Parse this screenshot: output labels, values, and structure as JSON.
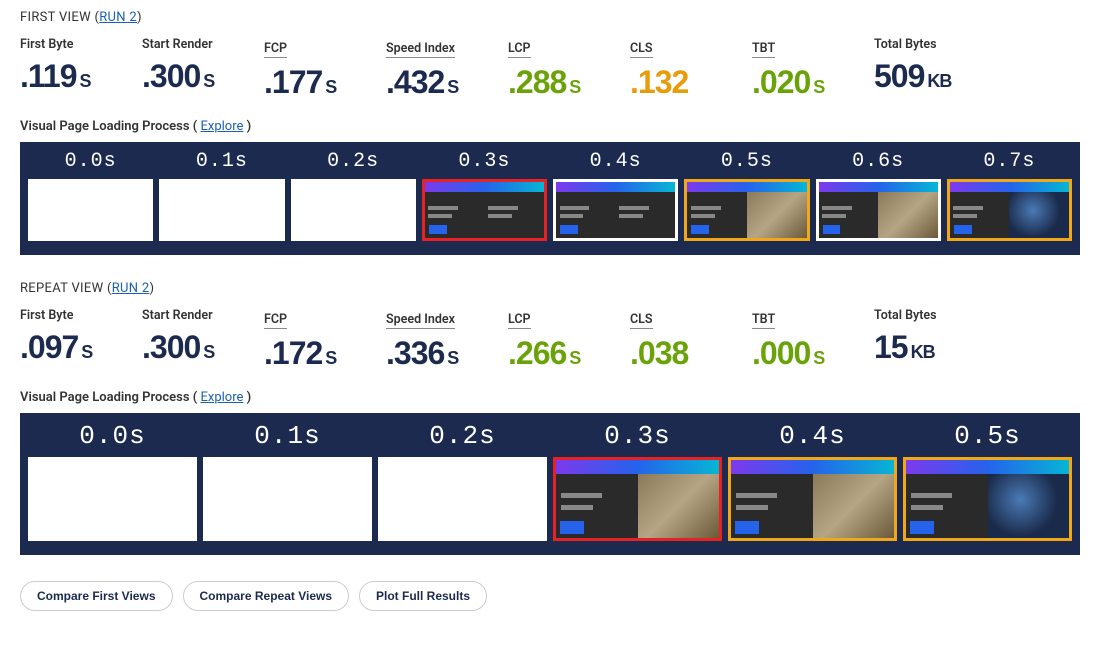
{
  "colors": {
    "text_dark": "#1b2a4e",
    "green": "#6aa309",
    "orange": "#e89c0c",
    "link": "#1a5fb4",
    "filmstrip_bg": "#1b2a4e",
    "border_red": "#e82222",
    "border_orange": "#f0a718"
  },
  "first_view": {
    "title_prefix": "FIRST VIEW (",
    "run_link": "RUN 2",
    "title_suffix": ")",
    "metrics": [
      {
        "label": "First Byte",
        "value": ".119",
        "unit": "S",
        "color": "dark",
        "underline": false
      },
      {
        "label": "Start Render",
        "value": ".300",
        "unit": "S",
        "color": "dark",
        "underline": false
      },
      {
        "label": "FCP",
        "value": ".177",
        "unit": "S",
        "color": "dark",
        "underline": true
      },
      {
        "label": "Speed Index",
        "value": ".432",
        "unit": "S",
        "color": "dark",
        "underline": true
      },
      {
        "label": "LCP",
        "value": ".288",
        "unit": "S",
        "color": "green",
        "underline": true
      },
      {
        "label": "CLS",
        "value": ".132",
        "unit": "",
        "color": "orange",
        "underline": true
      },
      {
        "label": "TBT",
        "value": ".020",
        "unit": "S",
        "color": "green",
        "underline": true
      },
      {
        "label": "Total Bytes",
        "value": "509",
        "unit": "KB",
        "color": "dark",
        "underline": false
      }
    ],
    "filmstrip_label": "Visual Page Loading Process",
    "explore_label": "Explore",
    "frames": [
      {
        "time": "0.0s",
        "state": "blank",
        "border": "none"
      },
      {
        "time": "0.1s",
        "state": "blank",
        "border": "none"
      },
      {
        "time": "0.2s",
        "state": "blank",
        "border": "none"
      },
      {
        "time": "0.3s",
        "state": "partial-dark",
        "border": "red"
      },
      {
        "time": "0.4s",
        "state": "partial-dark",
        "border": "none"
      },
      {
        "time": "0.5s",
        "state": "content-img1",
        "border": "orange"
      },
      {
        "time": "0.6s",
        "state": "content-img1",
        "border": "none"
      },
      {
        "time": "0.7s",
        "state": "content-img2",
        "border": "orange"
      }
    ]
  },
  "repeat_view": {
    "title_prefix": "REPEAT VIEW (",
    "run_link": "RUN 2",
    "title_suffix": ")",
    "metrics": [
      {
        "label": "First Byte",
        "value": ".097",
        "unit": "S",
        "color": "dark",
        "underline": false
      },
      {
        "label": "Start Render",
        "value": ".300",
        "unit": "S",
        "color": "dark",
        "underline": false
      },
      {
        "label": "FCP",
        "value": ".172",
        "unit": "S",
        "color": "dark",
        "underline": true
      },
      {
        "label": "Speed Index",
        "value": ".336",
        "unit": "S",
        "color": "dark",
        "underline": true
      },
      {
        "label": "LCP",
        "value": ".266",
        "unit": "S",
        "color": "green",
        "underline": true
      },
      {
        "label": "CLS",
        "value": ".038",
        "unit": "",
        "color": "green",
        "underline": true
      },
      {
        "label": "TBT",
        "value": ".000",
        "unit": "S",
        "color": "green",
        "underline": true
      },
      {
        "label": "Total Bytes",
        "value": "15",
        "unit": "KB",
        "color": "dark",
        "underline": false
      }
    ],
    "filmstrip_label": "Visual Page Loading Process",
    "explore_label": "Explore",
    "frames": [
      {
        "time": "0.0s",
        "state": "blank",
        "border": "none"
      },
      {
        "time": "0.1s",
        "state": "blank",
        "border": "none"
      },
      {
        "time": "0.2s",
        "state": "blank",
        "border": "none"
      },
      {
        "time": "0.3s",
        "state": "content-img1",
        "border": "red"
      },
      {
        "time": "0.4s",
        "state": "content-img1",
        "border": "orange"
      },
      {
        "time": "0.5s",
        "state": "content-img2",
        "border": "orange"
      }
    ]
  },
  "buttons": {
    "compare_first": "Compare First Views",
    "compare_repeat": "Compare Repeat Views",
    "plot_full": "Plot Full Results"
  }
}
